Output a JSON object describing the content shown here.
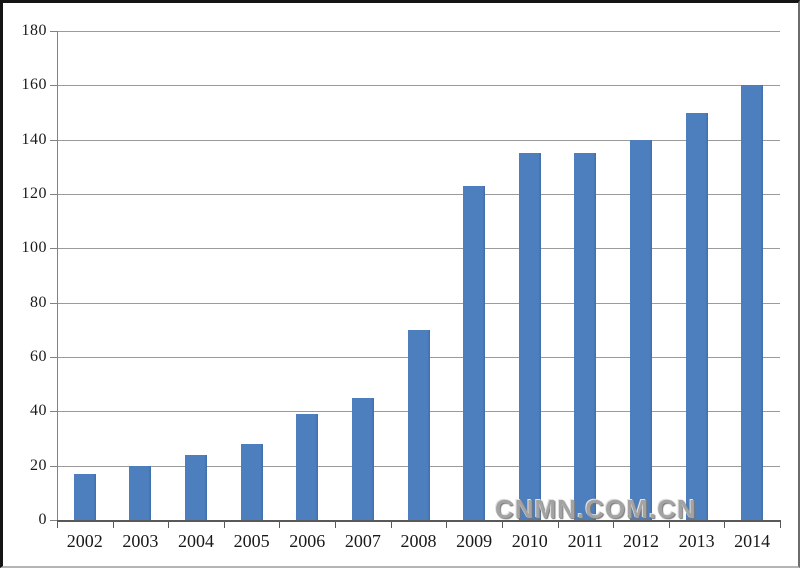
{
  "watermark": {
    "text": "CNMN.COM.CN",
    "color": "#a3a3a3"
  },
  "chart_data": {
    "type": "bar",
    "title": "",
    "xlabel": "",
    "ylabel": "",
    "categories": [
      "2002",
      "2003",
      "2004",
      "2005",
      "2006",
      "2007",
      "2008",
      "2009",
      "2010",
      "2011",
      "2012",
      "2013",
      "2014"
    ],
    "values": [
      17,
      20,
      24,
      28,
      39,
      45,
      70,
      123,
      135,
      135,
      140,
      150,
      160
    ],
    "ylim": [
      0,
      180
    ],
    "y_ticks": [
      0,
      20,
      40,
      60,
      80,
      100,
      120,
      140,
      160,
      180
    ],
    "grid": true,
    "legend": "none",
    "bar_color": "#4d7ebd",
    "bar_edge_color": "#3f6ea8",
    "gridline_color": "#9b9b9b",
    "axis_line_color": "#595959",
    "y_axis_color": "#828282",
    "label_color": "#1a1a1a"
  }
}
